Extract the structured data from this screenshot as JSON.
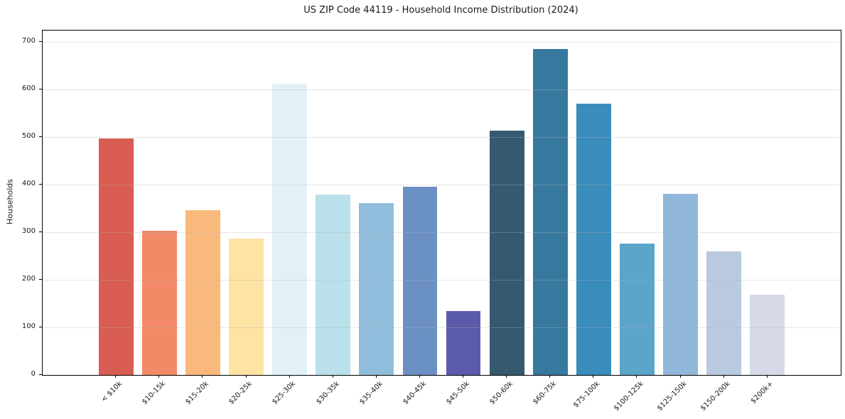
{
  "figure": {
    "background": "#ffffff",
    "text_color": "#1a1a1a",
    "grid_color": "#e8e8e8",
    "spine_color": "#000000"
  },
  "chart_data": {
    "type": "bar",
    "title": "US ZIP Code 44119 - Household Income Distribution (2024)",
    "xlabel": "",
    "ylabel": "Households",
    "categories": [
      "< $10k",
      "$10-15k",
      "$15-20k",
      "$20-25k",
      "$25-30k",
      "$30-35k",
      "$35-40k",
      "$40-45k",
      "$45-50k",
      "$50-60k",
      "$60-75k",
      "$75-100k",
      "$100-125k",
      "$125-150k",
      "$150-200k",
      "$200k+"
    ],
    "values": [
      497,
      303,
      347,
      286,
      612,
      379,
      362,
      396,
      134,
      513,
      685,
      570,
      276,
      381,
      260,
      169
    ],
    "bar_colors": [
      "#d95c52",
      "#f38a67",
      "#fab97c",
      "#fde3a4",
      "#e3f1f7",
      "#bae0eb",
      "#90bddc",
      "#6b90c4",
      "#5c5bab",
      "#35596e",
      "#37799e",
      "#3a8cbb",
      "#5ba4ca",
      "#91b7da",
      "#b9c9df",
      "#d6d9e7"
    ],
    "ylim": [
      0,
      724
    ],
    "yticks": [
      0,
      100,
      200,
      300,
      400,
      500,
      600,
      700
    ],
    "bar_width_ratio": 0.8,
    "x_margin_units": 1.19,
    "grid": "horizontal",
    "legend": "none",
    "tick_label_rotation": 45
  }
}
